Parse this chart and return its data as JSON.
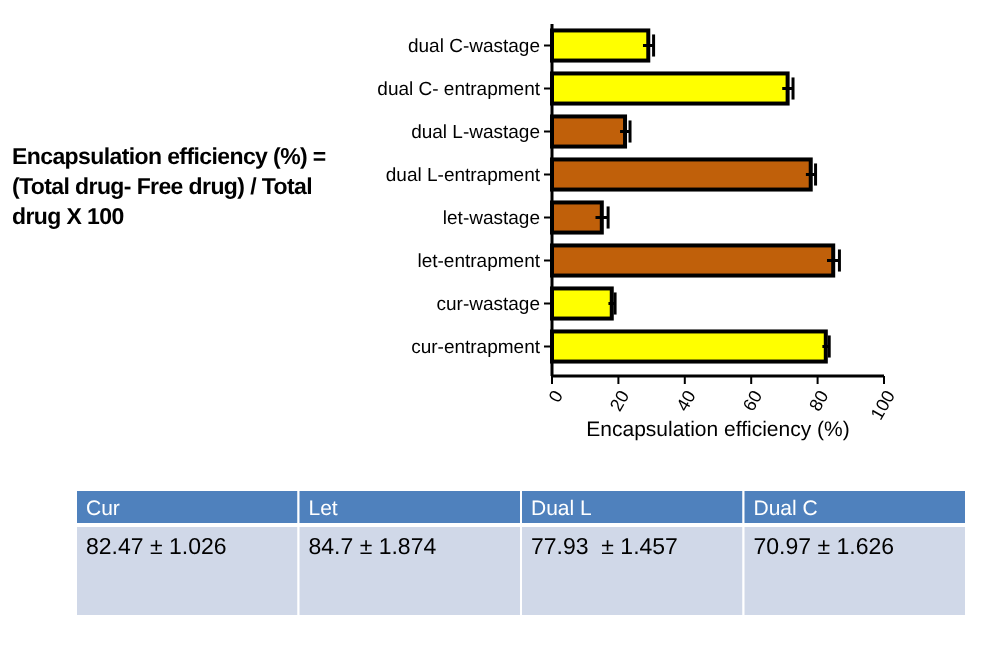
{
  "chart_data": {
    "type": "bar",
    "orientation": "horizontal",
    "xlabel": "Encapsulation efficiency (%)",
    "categories": [
      "dual C-wastage",
      "dual C- entrapment",
      "dual L-wastage",
      "dual L-entrapment",
      "let-wastage",
      "let-entrapment",
      "cur-wastage",
      "cur-entrapment"
    ],
    "values": [
      29,
      70.97,
      22,
      77.93,
      15,
      84.7,
      18,
      82.47
    ],
    "errors": [
      1.6,
      1.626,
      1.5,
      1.457,
      1.9,
      1.874,
      1,
      1.026
    ],
    "colors": [
      "#ffff00",
      "#ffff00",
      "#c0600a",
      "#c0600a",
      "#c0600a",
      "#c0600a",
      "#ffff00",
      "#ffff00"
    ],
    "xlim": [
      0,
      100
    ],
    "xticks": [
      0,
      20,
      40,
      60,
      80,
      100
    ],
    "grid": false,
    "annotations": [
      "Encapsulation efficiency (%) = (Total drug- Free drug) / Total drug X 100",
      "Cur",
      "Let",
      "Dual L",
      "Dual C",
      "82.47 ± 1.026",
      "84.7 ± 1.874",
      "77.93  ± 1.457",
      "70.97 ± 1.626"
    ]
  }
}
